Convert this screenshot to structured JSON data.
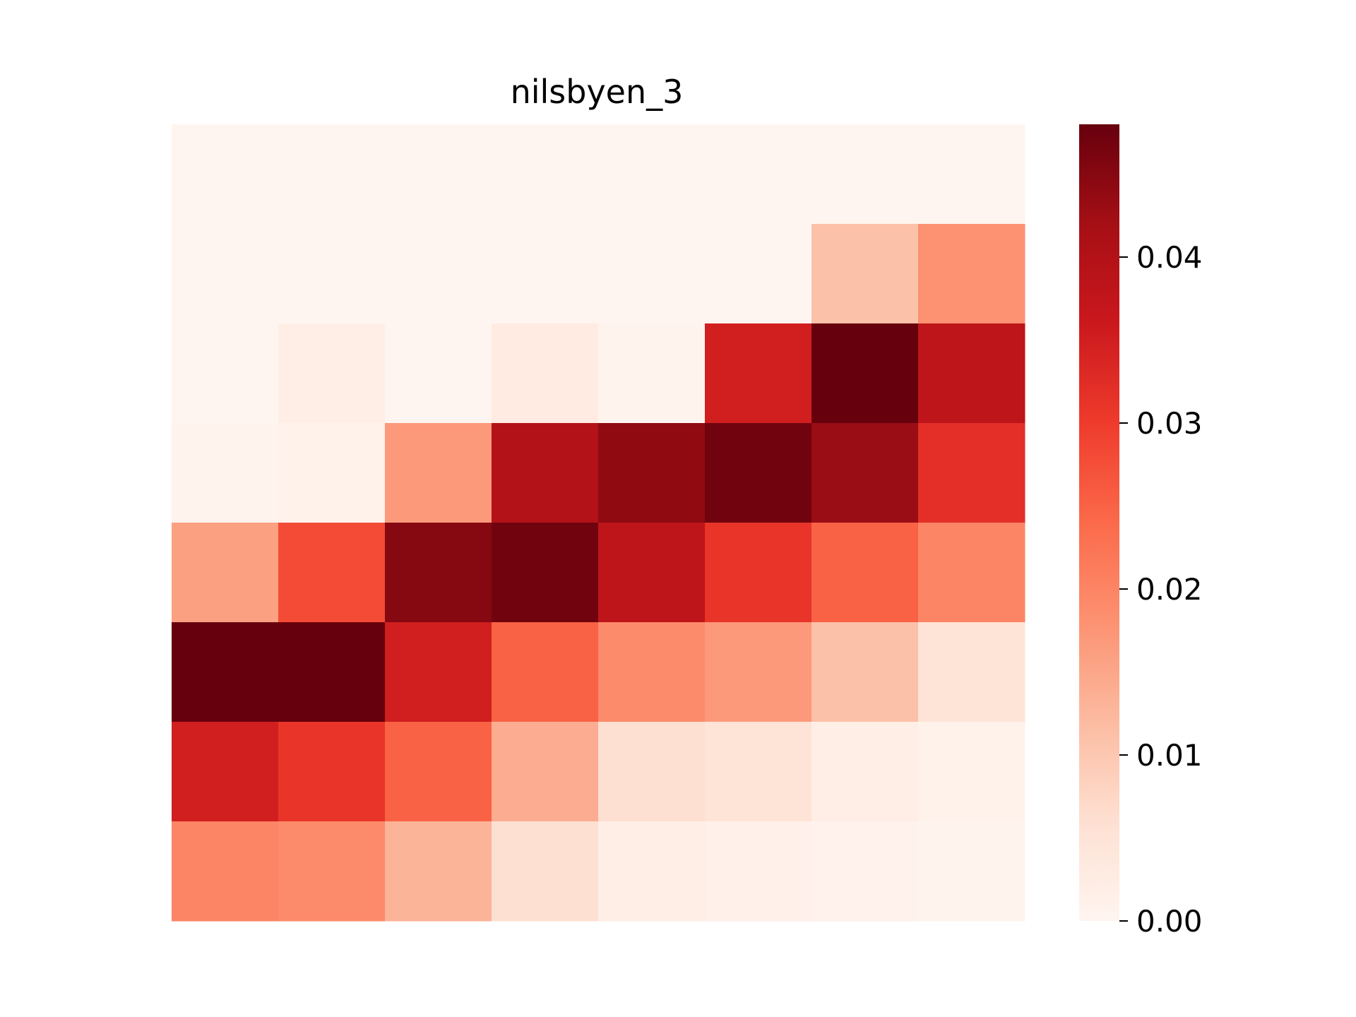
{
  "chart_data": {
    "type": "heatmap",
    "title": "nilsbyen_3",
    "xlabel": "",
    "ylabel": "",
    "colormap": "Reds",
    "colorbar": {
      "min": 0.0,
      "max": 0.048,
      "ticks": [
        0.0,
        0.01,
        0.02,
        0.03,
        0.04
      ],
      "tick_labels": [
        "0.00",
        "0.01",
        "0.02",
        "0.03",
        "0.04"
      ]
    },
    "rows": 8,
    "cols": 8,
    "values": [
      [
        0.0,
        0.0,
        0.0,
        0.0,
        0.0,
        0.0,
        0.0,
        0.0
      ],
      [
        0.0,
        0.0,
        0.0,
        0.0,
        0.0,
        0.0,
        0.011,
        0.018
      ],
      [
        0.0,
        0.002,
        0.0,
        0.003,
        0.0005,
        0.035,
        0.048,
        0.038
      ],
      [
        0.0005,
        0.001,
        0.017,
        0.04,
        0.044,
        0.047,
        0.043,
        0.032
      ],
      [
        0.016,
        0.028,
        0.045,
        0.047,
        0.038,
        0.031,
        0.025,
        0.02
      ],
      [
        0.048,
        0.048,
        0.035,
        0.025,
        0.019,
        0.017,
        0.011,
        0.005
      ],
      [
        0.035,
        0.031,
        0.025,
        0.014,
        0.006,
        0.005,
        0.002,
        0.001
      ],
      [
        0.02,
        0.019,
        0.013,
        0.006,
        0.002,
        0.0015,
        0.0008,
        0.0005
      ]
    ]
  }
}
